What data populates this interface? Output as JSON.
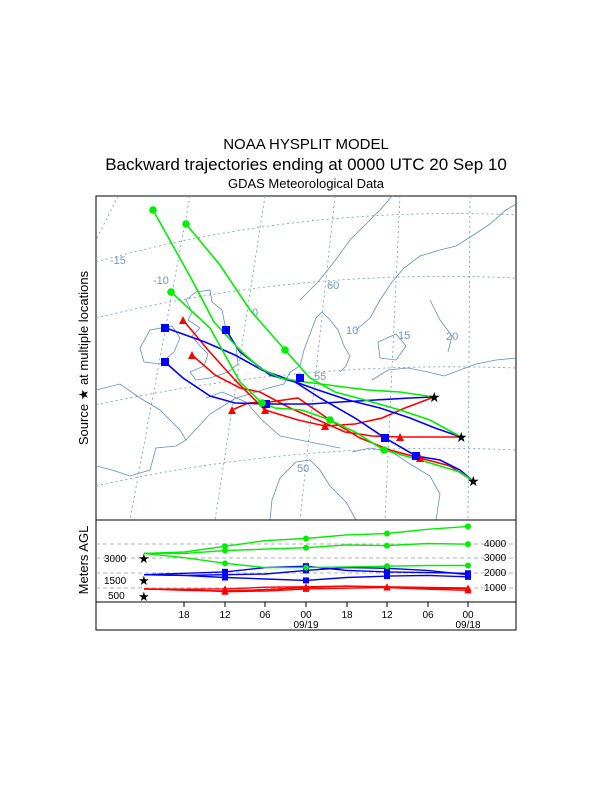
{
  "header": {
    "title": "NOAA HYSPLIT MODEL",
    "subtitle": "Backward trajectories ending at 0000 UTC 20 Sep 10",
    "data_source": "GDAS Meteorological Data"
  },
  "map": {
    "side_label": "Source ★ at multiple locations",
    "grid_labels": [
      "-15",
      "-10",
      "0",
      "60",
      "10",
      "15",
      "20",
      "55",
      "50"
    ],
    "colors": {
      "red": "#ff0000",
      "blue": "#0000ff",
      "green": "#00ee00",
      "grid": "#6c96c8",
      "coast": "#5f8fc0"
    }
  },
  "height_panel": {
    "axis_label": "Meters AGL",
    "left_levels": [
      "3000",
      "1500",
      "500"
    ],
    "right_levels": [
      "4000",
      "3000",
      "2000",
      "1000"
    ],
    "time_ticks": [
      "18",
      "12",
      "06",
      "00",
      "18",
      "12",
      "06",
      "00"
    ],
    "date_labels": [
      "09/19",
      "09/18"
    ]
  },
  "chart_data": {
    "type": "line",
    "title": "Backward trajectories ending at 0000 UTC 20 Sep 10",
    "xlabel": "",
    "ylabel": "Meters AGL",
    "x_hours_back": [
      0,
      6,
      12,
      18,
      24,
      30,
      36,
      42,
      48
    ],
    "series": [
      {
        "color": "red",
        "values": [
          500,
          450,
          300,
          350,
          500,
          550,
          600,
          520,
          520
        ]
      },
      {
        "color": "red",
        "values": [
          500,
          400,
          350,
          450,
          600,
          700,
          650,
          600,
          560
        ]
      },
      {
        "color": "red",
        "values": [
          500,
          480,
          500,
          620,
          650,
          700,
          600,
          480,
          400
        ]
      },
      {
        "color": "blue",
        "values": [
          1500,
          1600,
          1700,
          2000,
          2100,
          1800,
          1700,
          1650,
          1600
        ]
      },
      {
        "color": "blue",
        "values": [
          1500,
          1450,
          1300,
          1200,
          1100,
          1300,
          1400,
          1450,
          1350
        ]
      },
      {
        "color": "blue",
        "values": [
          1500,
          1450,
          1500,
          1550,
          1800,
          2000,
          1950,
          1800,
          1500
        ]
      },
      {
        "color": "green",
        "values": [
          3000,
          3100,
          3500,
          3900,
          4050,
          4300,
          4400,
          4700,
          4900
        ]
      },
      {
        "color": "green",
        "values": [
          3000,
          3000,
          3200,
          3300,
          3400,
          3600,
          3550,
          3700,
          3650
        ]
      },
      {
        "color": "green",
        "values": [
          3000,
          2700,
          2300,
          2000,
          2000,
          2050,
          2100,
          2150,
          2150
        ]
      }
    ],
    "ylim": [
      0,
      5000
    ]
  }
}
